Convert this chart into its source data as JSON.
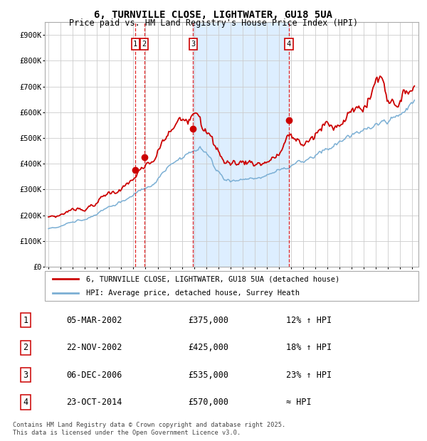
{
  "title": "6, TURNVILLE CLOSE, LIGHTWATER, GU18 5UA",
  "subtitle": "Price paid vs. HM Land Registry's House Price Index (HPI)",
  "ylim": [
    0,
    950000
  ],
  "yticks": [
    0,
    100000,
    200000,
    300000,
    400000,
    500000,
    600000,
    700000,
    800000,
    900000
  ],
  "ytick_labels": [
    "£0",
    "£100K",
    "£200K",
    "£300K",
    "£400K",
    "£500K",
    "£600K",
    "£700K",
    "£800K",
    "£900K"
  ],
  "hpi_color": "#7bafd4",
  "price_color": "#cc0000",
  "dot_color": "#cc0000",
  "grid_color": "#cccccc",
  "background_color": "#ffffff",
  "shaded_region_color": "#ddeeff",
  "sale_dates_decimal": [
    2002.17,
    2002.89,
    2006.92,
    2014.81
  ],
  "sale_prices": [
    375000,
    425000,
    535000,
    570000
  ],
  "sale_labels": [
    "1",
    "2",
    "3",
    "4"
  ],
  "shade_from": 2006.92,
  "shade_to": 2014.81,
  "legend_entries": [
    "6, TURNVILLE CLOSE, LIGHTWATER, GU18 5UA (detached house)",
    "HPI: Average price, detached house, Surrey Heath"
  ],
  "table_rows": [
    {
      "num": "1",
      "date": "05-MAR-2002",
      "price": "£375,000",
      "hpi": "12% ↑ HPI"
    },
    {
      "num": "2",
      "date": "22-NOV-2002",
      "price": "£425,000",
      "hpi": "18% ↑ HPI"
    },
    {
      "num": "3",
      "date": "06-DEC-2006",
      "price": "£535,000",
      "hpi": "23% ↑ HPI"
    },
    {
      "num": "4",
      "date": "23-OCT-2014",
      "price": "£570,000",
      "hpi": "≈ HPI"
    }
  ],
  "footer": "Contains HM Land Registry data © Crown copyright and database right 2025.\nThis data is licensed under the Open Government Licence v3.0."
}
